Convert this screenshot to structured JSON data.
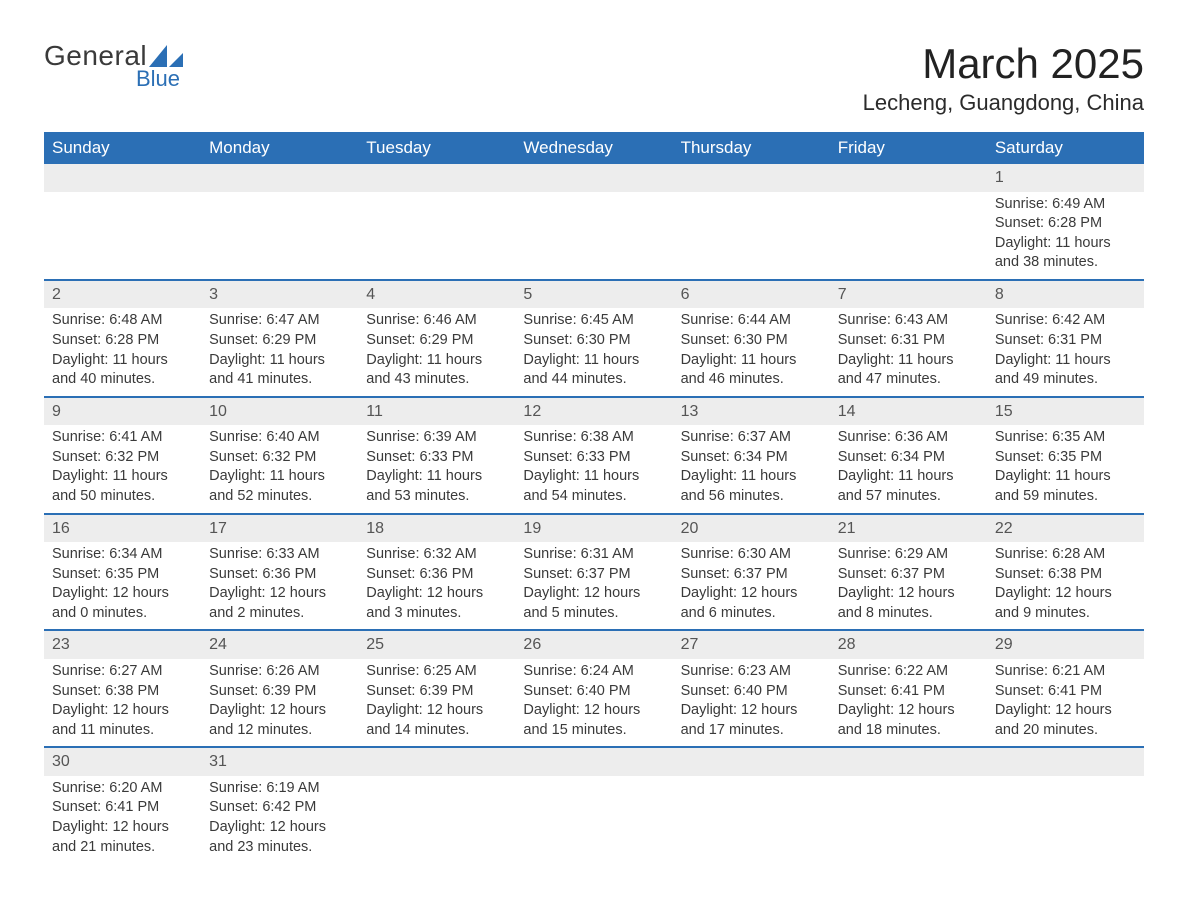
{
  "logo": {
    "line1": "General",
    "line2": "Blue",
    "sail_color": "#2b6fb5"
  },
  "header": {
    "month_title": "March 2025",
    "location": "Lecheng, Guangdong, China"
  },
  "styling": {
    "header_bg": "#2b6fb5",
    "header_text": "#ffffff",
    "daynum_bg": "#ededed",
    "row_divider": "#2b6fb5",
    "body_text": "#3a3a3a",
    "font_family": "Arial",
    "title_fontsize_pt": 32,
    "location_fontsize_pt": 17,
    "day_header_fontsize_pt": 13,
    "cell_fontsize_pt": 11
  },
  "day_headers": [
    "Sunday",
    "Monday",
    "Tuesday",
    "Wednesday",
    "Thursday",
    "Friday",
    "Saturday"
  ],
  "weeks": [
    [
      null,
      null,
      null,
      null,
      null,
      null,
      {
        "n": "1",
        "sr": "Sunrise: 6:49 AM",
        "ss": "Sunset: 6:28 PM",
        "d1": "Daylight: 11 hours",
        "d2": "and 38 minutes."
      }
    ],
    [
      {
        "n": "2",
        "sr": "Sunrise: 6:48 AM",
        "ss": "Sunset: 6:28 PM",
        "d1": "Daylight: 11 hours",
        "d2": "and 40 minutes."
      },
      {
        "n": "3",
        "sr": "Sunrise: 6:47 AM",
        "ss": "Sunset: 6:29 PM",
        "d1": "Daylight: 11 hours",
        "d2": "and 41 minutes."
      },
      {
        "n": "4",
        "sr": "Sunrise: 6:46 AM",
        "ss": "Sunset: 6:29 PM",
        "d1": "Daylight: 11 hours",
        "d2": "and 43 minutes."
      },
      {
        "n": "5",
        "sr": "Sunrise: 6:45 AM",
        "ss": "Sunset: 6:30 PM",
        "d1": "Daylight: 11 hours",
        "d2": "and 44 minutes."
      },
      {
        "n": "6",
        "sr": "Sunrise: 6:44 AM",
        "ss": "Sunset: 6:30 PM",
        "d1": "Daylight: 11 hours",
        "d2": "and 46 minutes."
      },
      {
        "n": "7",
        "sr": "Sunrise: 6:43 AM",
        "ss": "Sunset: 6:31 PM",
        "d1": "Daylight: 11 hours",
        "d2": "and 47 minutes."
      },
      {
        "n": "8",
        "sr": "Sunrise: 6:42 AM",
        "ss": "Sunset: 6:31 PM",
        "d1": "Daylight: 11 hours",
        "d2": "and 49 minutes."
      }
    ],
    [
      {
        "n": "9",
        "sr": "Sunrise: 6:41 AM",
        "ss": "Sunset: 6:32 PM",
        "d1": "Daylight: 11 hours",
        "d2": "and 50 minutes."
      },
      {
        "n": "10",
        "sr": "Sunrise: 6:40 AM",
        "ss": "Sunset: 6:32 PM",
        "d1": "Daylight: 11 hours",
        "d2": "and 52 minutes."
      },
      {
        "n": "11",
        "sr": "Sunrise: 6:39 AM",
        "ss": "Sunset: 6:33 PM",
        "d1": "Daylight: 11 hours",
        "d2": "and 53 minutes."
      },
      {
        "n": "12",
        "sr": "Sunrise: 6:38 AM",
        "ss": "Sunset: 6:33 PM",
        "d1": "Daylight: 11 hours",
        "d2": "and 54 minutes."
      },
      {
        "n": "13",
        "sr": "Sunrise: 6:37 AM",
        "ss": "Sunset: 6:34 PM",
        "d1": "Daylight: 11 hours",
        "d2": "and 56 minutes."
      },
      {
        "n": "14",
        "sr": "Sunrise: 6:36 AM",
        "ss": "Sunset: 6:34 PM",
        "d1": "Daylight: 11 hours",
        "d2": "and 57 minutes."
      },
      {
        "n": "15",
        "sr": "Sunrise: 6:35 AM",
        "ss": "Sunset: 6:35 PM",
        "d1": "Daylight: 11 hours",
        "d2": "and 59 minutes."
      }
    ],
    [
      {
        "n": "16",
        "sr": "Sunrise: 6:34 AM",
        "ss": "Sunset: 6:35 PM",
        "d1": "Daylight: 12 hours",
        "d2": "and 0 minutes."
      },
      {
        "n": "17",
        "sr": "Sunrise: 6:33 AM",
        "ss": "Sunset: 6:36 PM",
        "d1": "Daylight: 12 hours",
        "d2": "and 2 minutes."
      },
      {
        "n": "18",
        "sr": "Sunrise: 6:32 AM",
        "ss": "Sunset: 6:36 PM",
        "d1": "Daylight: 12 hours",
        "d2": "and 3 minutes."
      },
      {
        "n": "19",
        "sr": "Sunrise: 6:31 AM",
        "ss": "Sunset: 6:37 PM",
        "d1": "Daylight: 12 hours",
        "d2": "and 5 minutes."
      },
      {
        "n": "20",
        "sr": "Sunrise: 6:30 AM",
        "ss": "Sunset: 6:37 PM",
        "d1": "Daylight: 12 hours",
        "d2": "and 6 minutes."
      },
      {
        "n": "21",
        "sr": "Sunrise: 6:29 AM",
        "ss": "Sunset: 6:37 PM",
        "d1": "Daylight: 12 hours",
        "d2": "and 8 minutes."
      },
      {
        "n": "22",
        "sr": "Sunrise: 6:28 AM",
        "ss": "Sunset: 6:38 PM",
        "d1": "Daylight: 12 hours",
        "d2": "and 9 minutes."
      }
    ],
    [
      {
        "n": "23",
        "sr": "Sunrise: 6:27 AM",
        "ss": "Sunset: 6:38 PM",
        "d1": "Daylight: 12 hours",
        "d2": "and 11 minutes."
      },
      {
        "n": "24",
        "sr": "Sunrise: 6:26 AM",
        "ss": "Sunset: 6:39 PM",
        "d1": "Daylight: 12 hours",
        "d2": "and 12 minutes."
      },
      {
        "n": "25",
        "sr": "Sunrise: 6:25 AM",
        "ss": "Sunset: 6:39 PM",
        "d1": "Daylight: 12 hours",
        "d2": "and 14 minutes."
      },
      {
        "n": "26",
        "sr": "Sunrise: 6:24 AM",
        "ss": "Sunset: 6:40 PM",
        "d1": "Daylight: 12 hours",
        "d2": "and 15 minutes."
      },
      {
        "n": "27",
        "sr": "Sunrise: 6:23 AM",
        "ss": "Sunset: 6:40 PM",
        "d1": "Daylight: 12 hours",
        "d2": "and 17 minutes."
      },
      {
        "n": "28",
        "sr": "Sunrise: 6:22 AM",
        "ss": "Sunset: 6:41 PM",
        "d1": "Daylight: 12 hours",
        "d2": "and 18 minutes."
      },
      {
        "n": "29",
        "sr": "Sunrise: 6:21 AM",
        "ss": "Sunset: 6:41 PM",
        "d1": "Daylight: 12 hours",
        "d2": "and 20 minutes."
      }
    ],
    [
      {
        "n": "30",
        "sr": "Sunrise: 6:20 AM",
        "ss": "Sunset: 6:41 PM",
        "d1": "Daylight: 12 hours",
        "d2": "and 21 minutes."
      },
      {
        "n": "31",
        "sr": "Sunrise: 6:19 AM",
        "ss": "Sunset: 6:42 PM",
        "d1": "Daylight: 12 hours",
        "d2": "and 23 minutes."
      },
      null,
      null,
      null,
      null,
      null
    ]
  ]
}
